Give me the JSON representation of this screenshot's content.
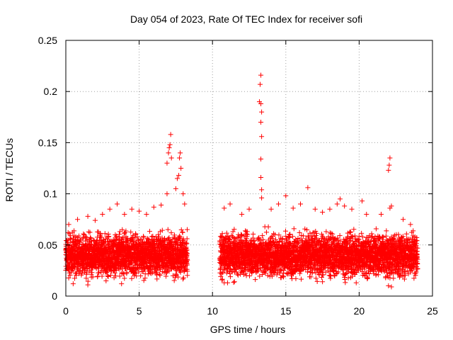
{
  "chart_data": {
    "type": "scatter",
    "title": "Day 054 of 2023, Rate Of TEC Index for receiver sofi",
    "xlabel": "GPS time / hours",
    "ylabel": "ROTI / TECUs",
    "xlim": [
      0,
      25
    ],
    "ylim": [
      0,
      0.25
    ],
    "xticks": [
      "0",
      "5",
      "10",
      "15",
      "20",
      "25"
    ],
    "yticks": [
      "0",
      "0.05",
      "0.1",
      "0.15",
      "0.2",
      "0.25"
    ],
    "grid": true,
    "marker": "+",
    "marker_color": "#ff0000",
    "series": [
      {
        "name": "ROTI",
        "bands": [
          {
            "x_start": 0.0,
            "x_end": 8.3,
            "y_low": 0.015,
            "y_high": 0.065
          },
          {
            "x_start": 10.5,
            "x_end": 24.0,
            "y_low": 0.015,
            "y_high": 0.065
          }
        ],
        "points": [
          [
            0.2,
            0.07
          ],
          [
            0.8,
            0.075
          ],
          [
            1.5,
            0.078
          ],
          [
            2.0,
            0.074
          ],
          [
            2.5,
            0.08
          ],
          [
            3.0,
            0.085
          ],
          [
            3.5,
            0.09
          ],
          [
            4.0,
            0.08
          ],
          [
            4.5,
            0.085
          ],
          [
            5.0,
            0.083
          ],
          [
            5.5,
            0.08
          ],
          [
            6.0,
            0.087
          ],
          [
            6.5,
            0.089
          ],
          [
            0.5,
            0.012
          ],
          [
            1.5,
            0.011
          ],
          [
            3.8,
            0.012
          ],
          [
            5.2,
            0.024
          ],
          [
            6.9,
            0.1
          ],
          [
            6.9,
            0.13
          ],
          [
            7.0,
            0.14
          ],
          [
            7.05,
            0.145
          ],
          [
            7.1,
            0.148
          ],
          [
            7.15,
            0.158
          ],
          [
            7.2,
            0.135
          ],
          [
            7.5,
            0.105
          ],
          [
            7.6,
            0.115
          ],
          [
            7.7,
            0.118
          ],
          [
            7.75,
            0.135
          ],
          [
            7.8,
            0.14
          ],
          [
            7.85,
            0.125
          ],
          [
            8.0,
            0.1
          ],
          [
            8.1,
            0.09
          ],
          [
            10.8,
            0.086
          ],
          [
            11.2,
            0.09
          ],
          [
            12.0,
            0.08
          ],
          [
            12.5,
            0.085
          ],
          [
            13.2,
            0.19
          ],
          [
            13.25,
            0.207
          ],
          [
            13.3,
            0.216
          ],
          [
            13.3,
            0.188
          ],
          [
            13.35,
            0.18
          ],
          [
            13.3,
            0.17
          ],
          [
            13.35,
            0.156
          ],
          [
            13.3,
            0.134
          ],
          [
            13.3,
            0.116
          ],
          [
            13.35,
            0.104
          ],
          [
            13.35,
            0.096
          ],
          [
            14.0,
            0.085
          ],
          [
            14.5,
            0.09
          ],
          [
            15.0,
            0.098
          ],
          [
            15.5,
            0.086
          ],
          [
            16.0,
            0.09
          ],
          [
            16.5,
            0.106
          ],
          [
            17.0,
            0.085
          ],
          [
            17.5,
            0.082
          ],
          [
            18.0,
            0.085
          ],
          [
            18.5,
            0.09
          ],
          [
            18.7,
            0.095
          ],
          [
            19.0,
            0.088
          ],
          [
            19.5,
            0.085
          ],
          [
            20.2,
            0.093
          ],
          [
            20.5,
            0.08
          ],
          [
            21.5,
            0.08
          ],
          [
            10.8,
            0.013
          ],
          [
            11.5,
            0.014
          ],
          [
            17.5,
            0.014
          ],
          [
            19.8,
            0.013
          ],
          [
            22.0,
            0.123
          ],
          [
            22.05,
            0.128
          ],
          [
            22.1,
            0.135
          ],
          [
            22.2,
            0.088
          ],
          [
            22.1,
            0.086
          ],
          [
            22.0,
            0.01
          ],
          [
            22.2,
            0.009
          ],
          [
            23.0,
            0.075
          ],
          [
            23.5,
            0.07
          ]
        ]
      }
    ]
  }
}
